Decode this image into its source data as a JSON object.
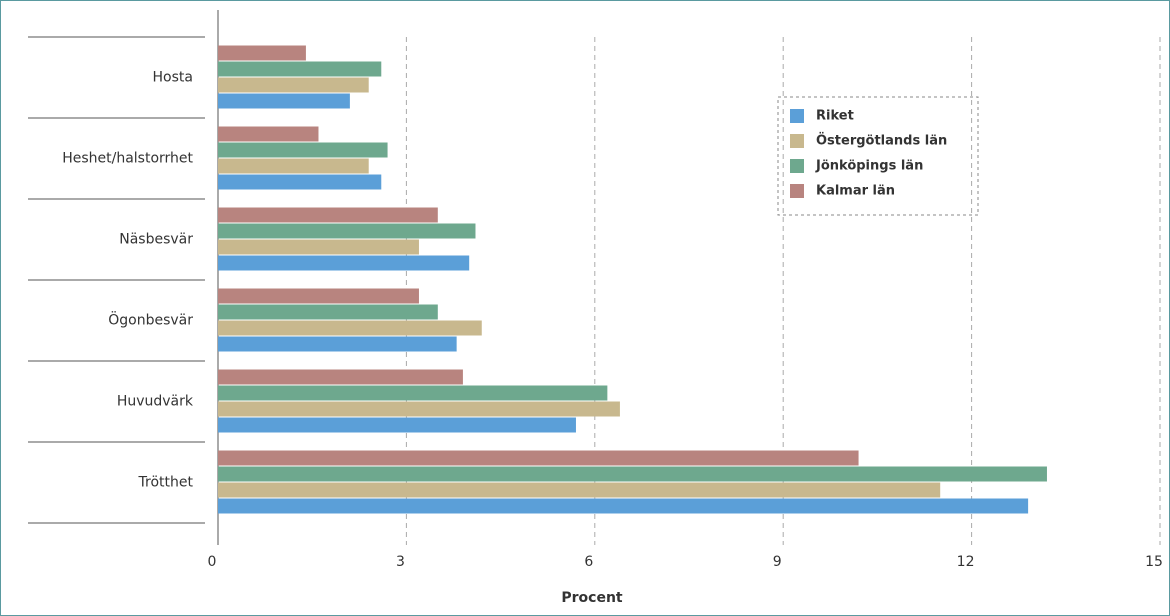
{
  "chart_data": {
    "type": "hbar",
    "x_label": "Procent",
    "categories": [
      "Hosta",
      "Heshet/halstorrhet",
      "Näsbesvär",
      "Ögonbesvär",
      "Huvudvärk",
      "Trötthet"
    ],
    "series": [
      {
        "name": "Riket",
        "color": "#5b9fd8",
        "values": [
          2.1,
          2.6,
          4.0,
          3.8,
          5.7,
          12.9
        ]
      },
      {
        "name": "Östergötlands län",
        "color": "#c8b88e",
        "values": [
          2.4,
          2.4,
          3.2,
          4.2,
          6.4,
          11.5
        ]
      },
      {
        "name": "Jönköpings län",
        "color": "#6ea88e",
        "values": [
          2.6,
          2.7,
          4.1,
          3.5,
          6.2,
          13.2
        ]
      },
      {
        "name": "Kalmar län",
        "color": "#b8847f",
        "values": [
          1.4,
          1.6,
          3.5,
          3.2,
          3.9,
          10.2
        ]
      }
    ],
    "xlim": [
      0,
      15
    ],
    "xticks": [
      0,
      3,
      6,
      9,
      12,
      15
    ],
    "grid": true
  }
}
